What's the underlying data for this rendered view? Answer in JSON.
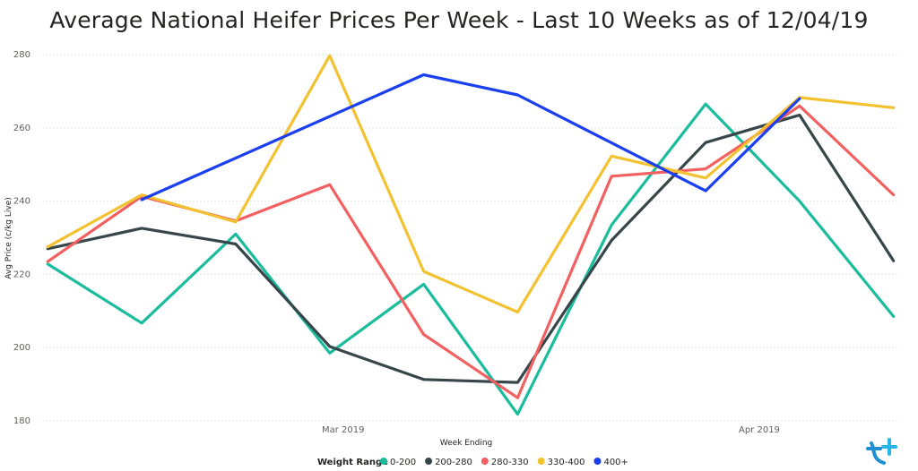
{
  "chart_data": {
    "type": "line",
    "title": "Average National Heifer Prices Per Week - Last 10 Weeks as of 12/04/19",
    "xlabel": "Week Ending",
    "ylabel": "Avg Price (c/kg Live)",
    "ylim": [
      180,
      280
    ],
    "yticks": [
      "180",
      "200",
      "220",
      "240",
      "260",
      "280"
    ],
    "x": [
      "2019-02-07",
      "2019-02-14",
      "2019-02-21",
      "2019-02-28",
      "2019-03-07",
      "2019-03-14",
      "2019-03-21",
      "2019-03-28",
      "2019-04-04",
      "2019-04-11"
    ],
    "xticks": [
      {
        "label": "Mar 2019",
        "x": "2019-03-01"
      },
      {
        "label": "Apr 2019",
        "x": "2019-04-01"
      }
    ],
    "grid": true,
    "legend_title": "Weight Range",
    "legend_position": "bottom",
    "series": [
      {
        "name": "0-200",
        "color": "#1abc9c",
        "values": [
          222.8,
          206.7,
          231.0,
          198.5,
          217.3,
          181.8,
          233.5,
          266.5,
          240.0,
          208.5
        ]
      },
      {
        "name": "200-280",
        "color": "#374649",
        "values": [
          227.0,
          232.6,
          228.3,
          200.3,
          191.3,
          190.5,
          229.3,
          256.0,
          263.5,
          223.7
        ]
      },
      {
        "name": "280-330",
        "color": "#f26061",
        "values": [
          223.5,
          241.3,
          234.6,
          244.5,
          203.6,
          186.3,
          246.8,
          248.8,
          266.0,
          241.7
        ]
      },
      {
        "name": "330-400",
        "color": "#f2c231",
        "values": [
          227.5,
          241.7,
          234.3,
          279.7,
          220.8,
          209.7,
          252.3,
          246.3,
          268.3,
          265.5
        ]
      },
      {
        "name": "400+",
        "color": "#1a3ff0",
        "values": [
          null,
          240.4,
          null,
          null,
          274.5,
          269.0,
          null,
          242.8,
          268.0,
          null
        ]
      }
    ]
  }
}
